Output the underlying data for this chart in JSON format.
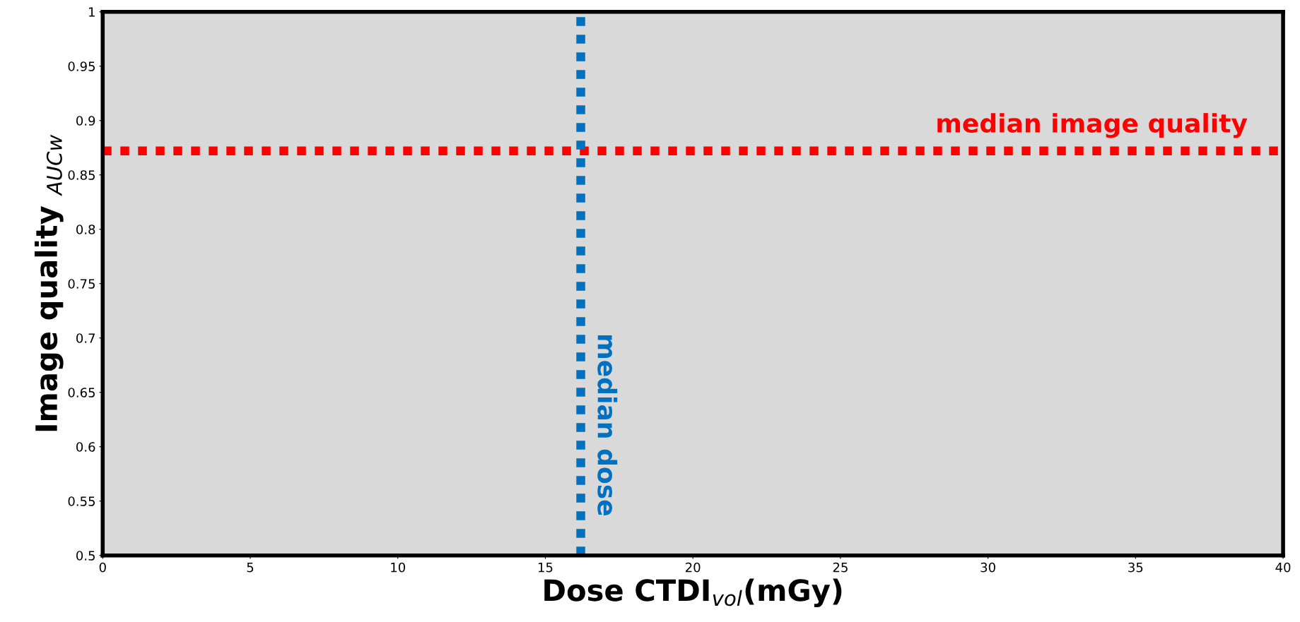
{
  "chart_data": {
    "type": "scatter",
    "xlabel": "Dose CTDI$_{vol}$(mGy)",
    "ylabel": "Image quality $_{AUCw}$",
    "xlim": [
      0,
      40
    ],
    "xticks": [
      0,
      5,
      10,
      15,
      20,
      25,
      30,
      35,
      40
    ],
    "ylim": [
      0.5,
      1
    ],
    "yticks": [
      0.5,
      0.55,
      0.6,
      0.65,
      0.7,
      0.75,
      0.8,
      0.85,
      0.9,
      0.95,
      1
    ],
    "grid": false,
    "ref_lines": [
      {
        "axis": "y",
        "value": 0.872,
        "label": "median image quality",
        "color": "#ff0000",
        "line_style": "dotted"
      },
      {
        "axis": "x",
        "value": 16.2,
        "label": "median dose",
        "color": "#0070c0",
        "line_style": "dotted"
      }
    ]
  }
}
